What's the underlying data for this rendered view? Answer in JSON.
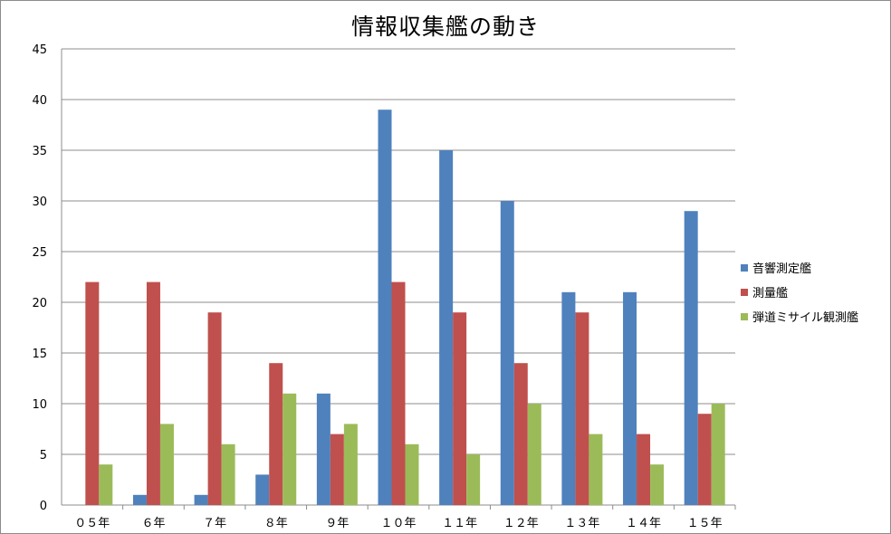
{
  "chart_data": {
    "type": "bar",
    "title": "情報収集艦の動き",
    "categories": [
      "０５年",
      "６年",
      "７年",
      "８年",
      "９年",
      "１０年",
      "１１年",
      "１２年",
      "１３年",
      "１４年",
      "１５年"
    ],
    "series": [
      {
        "name": "音響測定艦",
        "color": "#4f81bd",
        "values": [
          0,
          1,
          1,
          3,
          11,
          39,
          35,
          30,
          21,
          21,
          29
        ]
      },
      {
        "name": "測量艦",
        "color": "#c0504d",
        "values": [
          22,
          22,
          19,
          14,
          7,
          22,
          19,
          14,
          19,
          7,
          9
        ]
      },
      {
        "name": "弾道ミサイル観測艦",
        "color": "#9bbb59",
        "values": [
          4,
          8,
          6,
          11,
          8,
          6,
          5,
          10,
          7,
          4,
          10
        ]
      }
    ],
    "ylim": [
      0,
      45
    ],
    "yticks": [
      0,
      5,
      10,
      15,
      20,
      25,
      30,
      35,
      40,
      45
    ],
    "grid": true,
    "legend_position": "right"
  }
}
